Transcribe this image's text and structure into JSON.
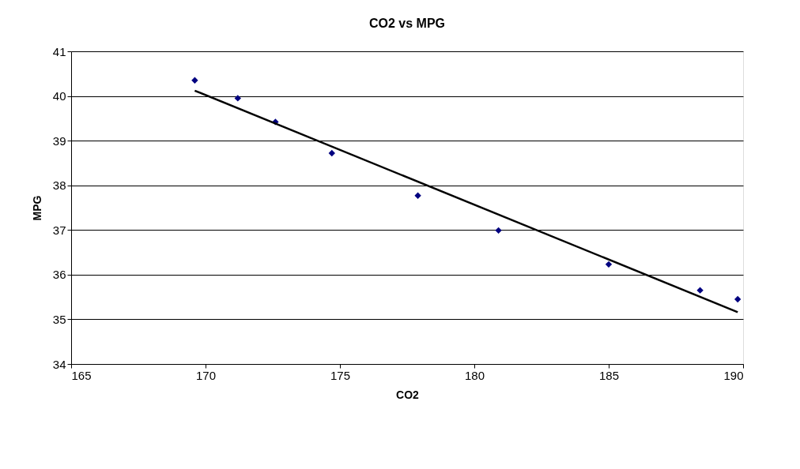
{
  "chart_data": {
    "type": "scatter",
    "title": "CO2 vs MPG",
    "xlabel": "CO2",
    "ylabel": "MPG",
    "xlim": [
      165,
      190
    ],
    "xticks": [
      165,
      170,
      175,
      180,
      185,
      190
    ],
    "ylim": [
      34,
      41
    ],
    "yticks": [
      34,
      35,
      36,
      37,
      38,
      39,
      40,
      41
    ],
    "grid": "y",
    "series": [
      {
        "marker": "diamond",
        "color": "#000080",
        "x": [
          169.6,
          171.2,
          172.6,
          174.7,
          177.9,
          180.9,
          185.0,
          188.4,
          189.8
        ],
        "values": [
          40.35,
          39.95,
          39.42,
          38.72,
          37.77,
          36.99,
          36.23,
          35.65,
          35.45
        ]
      },
      {
        "type": "line",
        "marker": "none",
        "color": "#000000",
        "line_style": "solid",
        "x": [
          169.6,
          189.8
        ],
        "values": [
          40.12,
          35.16
        ]
      }
    ]
  }
}
